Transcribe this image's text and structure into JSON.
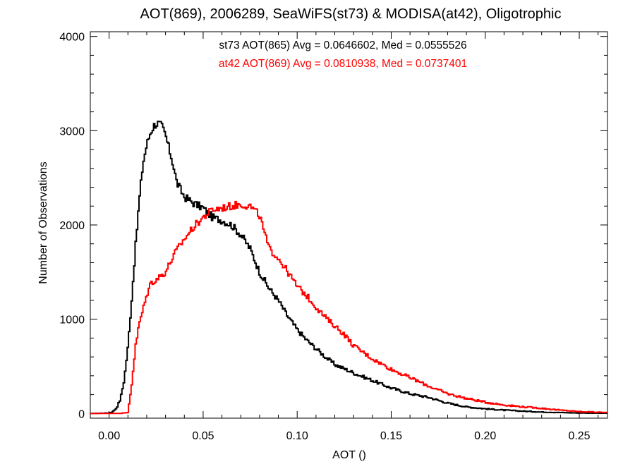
{
  "chart_data": {
    "type": "line",
    "title": "AOT(869), 2006289, SeaWiFS(st73) & MODISA(at42), Oligotrophic",
    "xlabel": "AOT ()",
    "ylabel": "Number of Observations",
    "xlim": [
      -0.01,
      0.265
    ],
    "ylim": [
      -50,
      4050
    ],
    "x_ticks": [
      0.0,
      0.05,
      0.1,
      0.15,
      0.2,
      0.25
    ],
    "x_tick_labels": [
      "0.00",
      "0.05",
      "0.10",
      "0.15",
      "0.20",
      "0.25"
    ],
    "y_ticks": [
      0,
      1000,
      2000,
      3000,
      4000
    ],
    "y_tick_labels": [
      "0",
      "1000",
      "2000",
      "3000",
      "4000"
    ],
    "grid": false,
    "step": true,
    "annotations": [
      {
        "text": "st73 AOT(865) Avg = 0.0646602, Med = 0.0555526",
        "color": "#000000"
      },
      {
        "text": "at42 AOT(869) Avg = 0.0810938, Med = 0.0737401",
        "color": "#ff0000"
      }
    ],
    "series": [
      {
        "color": "#000000",
        "x": [
          -0.01,
          0.0,
          0.002,
          0.004,
          0.006,
          0.008,
          0.01,
          0.012,
          0.014,
          0.016,
          0.018,
          0.02,
          0.022,
          0.024,
          0.026,
          0.028,
          0.03,
          0.032,
          0.034,
          0.036,
          0.04,
          0.045,
          0.05,
          0.055,
          0.06,
          0.065,
          0.07,
          0.075,
          0.08,
          0.085,
          0.09,
          0.095,
          0.1,
          0.105,
          0.11,
          0.115,
          0.12,
          0.13,
          0.14,
          0.15,
          0.16,
          0.17,
          0.18,
          0.19,
          0.2,
          0.21,
          0.22,
          0.23,
          0.24,
          0.25,
          0.265
        ],
        "y": [
          0,
          5,
          20,
          60,
          150,
          350,
          700,
          1200,
          1750,
          2250,
          2650,
          2850,
          2980,
          3060,
          3080,
          3050,
          2950,
          2800,
          2650,
          2450,
          2300,
          2230,
          2180,
          2080,
          2050,
          2000,
          1900,
          1750,
          1500,
          1330,
          1200,
          1030,
          890,
          780,
          690,
          600,
          520,
          430,
          350,
          270,
          210,
          170,
          110,
          70,
          50,
          35,
          25,
          15,
          10,
          5,
          3
        ]
      },
      {
        "color": "#ff0000",
        "x": [
          -0.01,
          0.006,
          0.01,
          0.012,
          0.014,
          0.016,
          0.018,
          0.02,
          0.022,
          0.025,
          0.03,
          0.035,
          0.04,
          0.045,
          0.05,
          0.055,
          0.06,
          0.065,
          0.07,
          0.075,
          0.08,
          0.085,
          0.09,
          0.095,
          0.1,
          0.105,
          0.11,
          0.115,
          0.12,
          0.125,
          0.13,
          0.14,
          0.15,
          0.16,
          0.17,
          0.18,
          0.19,
          0.2,
          0.21,
          0.22,
          0.23,
          0.24,
          0.25,
          0.265
        ],
        "y": [
          0,
          0,
          10,
          300,
          700,
          950,
          1100,
          1250,
          1380,
          1420,
          1500,
          1700,
          1850,
          1980,
          2080,
          2160,
          2180,
          2200,
          2220,
          2200,
          2100,
          1750,
          1650,
          1500,
          1350,
          1250,
          1130,
          1020,
          930,
          840,
          720,
          580,
          470,
          380,
          290,
          210,
          160,
          120,
          90,
          70,
          55,
          35,
          20,
          10
        ]
      }
    ]
  }
}
